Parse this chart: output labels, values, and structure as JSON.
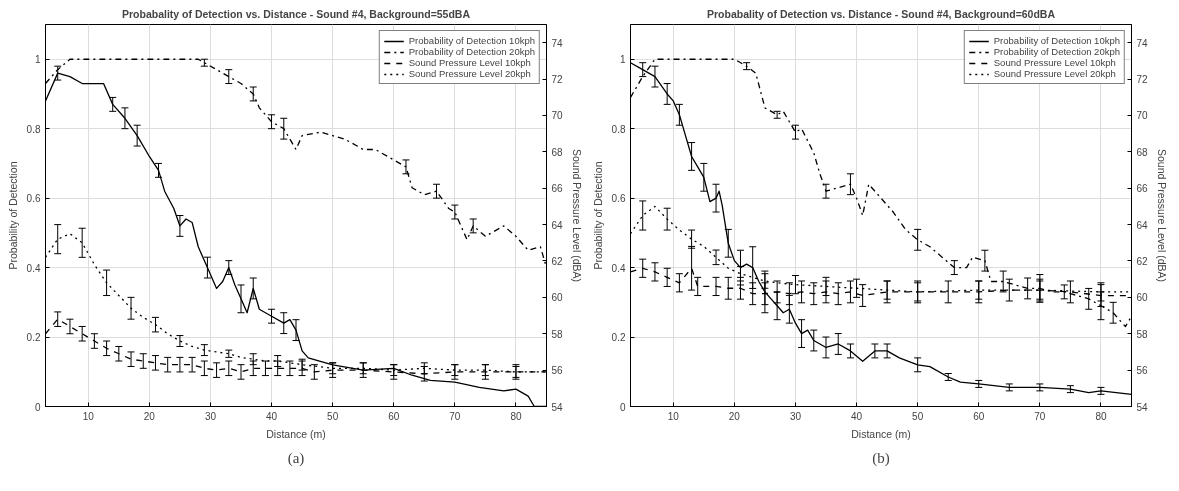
{
  "chart_data": [
    {
      "type": "line",
      "title": "Probabality of Detection vs. Distance - Sound #4, Background=55dBA",
      "xlabel": "Distance (m)",
      "ylabel": "Probability of Detection",
      "y2label": "Sound Pressure Level (dBA)",
      "annotations": [
        "(a)"
      ],
      "xlim": [
        3,
        85
      ],
      "xticks": [
        10,
        20,
        30,
        40,
        50,
        60,
        70,
        80
      ],
      "ylim": [
        0,
        1.1
      ],
      "yticks": [
        0,
        0.2,
        0.4,
        0.6,
        0.8,
        1
      ],
      "y2lim": [
        54,
        75
      ],
      "y2ticks": [
        54,
        56,
        58,
        60,
        62,
        64,
        66,
        68,
        70,
        72,
        74
      ],
      "grid": true,
      "legend": "top right",
      "series": [
        {
          "name": "Probability of Detection 10kph",
          "color": "#000000",
          "line_style": "solid",
          "x": [
            3,
            5,
            7,
            9,
            11,
            12.5,
            14,
            16,
            18,
            20,
            21.5,
            22.5,
            24,
            25,
            26,
            27,
            28,
            29.5,
            31,
            32,
            33,
            34,
            35,
            36,
            37,
            38,
            40,
            42,
            43,
            44,
            45,
            46,
            48,
            50,
            55,
            60,
            63,
            66,
            70,
            74,
            78,
            80,
            82,
            83,
            85
          ],
          "values": [
            0.88,
            0.96,
            0.95,
            0.93,
            0.93,
            0.93,
            0.87,
            0.83,
            0.78,
            0.72,
            0.68,
            0.62,
            0.57,
            0.52,
            0.54,
            0.53,
            0.46,
            0.4,
            0.34,
            0.36,
            0.4,
            0.35,
            0.31,
            0.27,
            0.34,
            0.28,
            0.26,
            0.24,
            0.25,
            0.22,
            0.16,
            0.14,
            0.13,
            0.12,
            0.105,
            0.11,
            0.09,
            0.075,
            0.07,
            0.055,
            0.045,
            0.05,
            0.03,
            0,
            0
          ],
          "errors": [
            null,
            0.02,
            null,
            null,
            null,
            null,
            0.02,
            0.03,
            0.03,
            null,
            0.02,
            null,
            null,
            0.03,
            null,
            null,
            null,
            0.03,
            null,
            null,
            0.02,
            null,
            0.04,
            null,
            0.03,
            null,
            0.02,
            0.03,
            null,
            0.03,
            null,
            null,
            null,
            null,
            null,
            null,
            null,
            null,
            null,
            null,
            null,
            null,
            null,
            null,
            null
          ]
        },
        {
          "name": "Probability of Detection 20kph",
          "color": "#000000",
          "line_style": "dashdot",
          "x": [
            3,
            5,
            7,
            10,
            20,
            28,
            29,
            31,
            33,
            35,
            37,
            38,
            40,
            42,
            44,
            45,
            48,
            50,
            52,
            54,
            55,
            57,
            60,
            62,
            63,
            65,
            67,
            69,
            70,
            71,
            72,
            73,
            75,
            77,
            78,
            80,
            82,
            84,
            85
          ],
          "values": [
            0.93,
            0.97,
            1,
            1,
            1,
            1,
            0.99,
            0.97,
            0.95,
            0.93,
            0.9,
            0.86,
            0.82,
            0.8,
            0.74,
            0.78,
            0.79,
            0.78,
            0.77,
            0.75,
            0.74,
            0.74,
            0.71,
            0.69,
            0.63,
            0.61,
            0.62,
            0.57,
            0.56,
            0.52,
            0.48,
            0.52,
            0.49,
            0.51,
            0.52,
            0.49,
            0.45,
            0.46,
            0.4
          ],
          "errors": [
            null,
            null,
            null,
            null,
            null,
            null,
            0.01,
            null,
            0.02,
            null,
            0.02,
            null,
            0.02,
            0.03,
            null,
            null,
            null,
            null,
            null,
            null,
            null,
            null,
            null,
            0.02,
            null,
            null,
            0.02,
            null,
            0.02,
            null,
            null,
            0.02,
            null,
            null,
            null,
            null,
            null,
            null,
            null
          ]
        },
        {
          "name": "Sound Pressure Level 10kph",
          "color": "#000000",
          "line_style": "dashed",
          "axis": "y2",
          "x": [
            3,
            5,
            7,
            9,
            11,
            13,
            15,
            17,
            19,
            21,
            23,
            25,
            27,
            29,
            31,
            33,
            35,
            37,
            39,
            41,
            43,
            45,
            47,
            50,
            55,
            60,
            65,
            70,
            75,
            80,
            85
          ],
          "values": [
            58.0,
            58.8,
            58.4,
            58.0,
            57.6,
            57.2,
            56.9,
            56.6,
            56.5,
            56.4,
            56.3,
            56.3,
            56.3,
            56.1,
            56.0,
            56.1,
            55.9,
            56.1,
            56.1,
            56.1,
            56.1,
            56.1,
            55.9,
            56.0,
            56.0,
            55.9,
            55.8,
            55.9,
            55.9,
            55.9,
            55.9
          ],
          "errors": [
            null,
            0.4,
            0.4,
            0.4,
            0.4,
            0.4,
            0.4,
            0.4,
            0.4,
            0.4,
            0.4,
            0.4,
            0.4,
            0.4,
            0.4,
            0.4,
            0.4,
            0.4,
            0.4,
            0.4,
            0.4,
            0.4,
            0.4,
            0.4,
            0.4,
            0.4,
            0.4,
            0.4,
            0.4,
            0.4,
            null
          ]
        },
        {
          "name": "Sound Pressure Level 20kph",
          "color": "#000000",
          "line_style": "dotted",
          "axis": "y2",
          "x": [
            3,
            5,
            7,
            9,
            11,
            13,
            15,
            17,
            19,
            21,
            23,
            25,
            27,
            29,
            31,
            33,
            35,
            37,
            39,
            41,
            43,
            45,
            50,
            55,
            60,
            65,
            70,
            75,
            80,
            85
          ],
          "values": [
            62.2,
            63.2,
            63.5,
            63.0,
            61.8,
            60.8,
            60.1,
            59.4,
            58.9,
            58.5,
            58.0,
            57.6,
            57.3,
            57.1,
            57.0,
            56.9,
            56.7,
            56.6,
            56.5,
            56.5,
            56.4,
            56.3,
            56.1,
            56.1,
            56.0,
            56.1,
            56.0,
            56.0,
            55.9,
            55.9
          ],
          "errors": [
            null,
            0.8,
            null,
            0.8,
            null,
            0.7,
            null,
            0.6,
            null,
            0.4,
            null,
            0.3,
            null,
            0.3,
            null,
            0.2,
            null,
            0.3,
            null,
            0.3,
            null,
            0.3,
            0.3,
            0.3,
            0.3,
            0.3,
            0.3,
            0.3,
            0.3,
            null
          ]
        }
      ]
    },
    {
      "type": "line",
      "title": "Probabality of Detection vs. Distance - Sound #4, Background=60dBA",
      "xlabel": "Distance (m)",
      "ylabel": "Probability of Detection",
      "y2label": "Sound Pressure Level (dBA)",
      "annotations": [
        "(b)"
      ],
      "xlim": [
        3,
        85
      ],
      "xticks": [
        10,
        20,
        30,
        40,
        50,
        60,
        70,
        80
      ],
      "ylim": [
        0,
        1.1
      ],
      "yticks": [
        0,
        0.2,
        0.4,
        0.6,
        0.8,
        1
      ],
      "y2lim": [
        54,
        75
      ],
      "y2ticks": [
        54,
        56,
        58,
        60,
        62,
        64,
        66,
        68,
        70,
        72,
        74
      ],
      "grid": true,
      "legend": "top right",
      "series": [
        {
          "name": "Probability of Detection 10kph",
          "color": "#000000",
          "line_style": "solid",
          "x": [
            3,
            5,
            7,
            9,
            10,
            11,
            12,
            13,
            14,
            15,
            16,
            17,
            17.5,
            18,
            19,
            20,
            21,
            22,
            23,
            24,
            25,
            26,
            27,
            28,
            29,
            30,
            31,
            32,
            33,
            35,
            37,
            39,
            41,
            43,
            45,
            47,
            50,
            52,
            55,
            57,
            60,
            65,
            70,
            75,
            78,
            80,
            85
          ],
          "values": [
            0.99,
            0.97,
            0.95,
            0.9,
            0.88,
            0.84,
            0.78,
            0.72,
            0.69,
            0.66,
            0.59,
            0.6,
            0.62,
            0.58,
            0.47,
            0.42,
            0.4,
            0.41,
            0.4,
            0.36,
            0.33,
            0.31,
            0.29,
            0.27,
            0.28,
            0.24,
            0.21,
            0.22,
            0.19,
            0.17,
            0.18,
            0.16,
            0.13,
            0.16,
            0.16,
            0.14,
            0.12,
            0.115,
            0.085,
            0.07,
            0.065,
            0.055,
            0.055,
            0.05,
            0.04,
            0.045,
            0.035
          ],
          "errors": [
            null,
            0.02,
            0.03,
            0.03,
            null,
            0.03,
            null,
            0.04,
            null,
            0.04,
            null,
            0.04,
            null,
            null,
            0.04,
            null,
            0.05,
            null,
            0.06,
            null,
            0.06,
            null,
            0.04,
            null,
            0.04,
            null,
            0.04,
            null,
            0.03,
            0.03,
            0.03,
            0.02,
            null,
            0.02,
            0.02,
            null,
            0.02,
            null,
            0.01,
            null,
            0.01,
            0.01,
            0.01,
            0.01,
            null,
            0.01,
            null
          ]
        },
        {
          "name": "Probability of Detection 20kph",
          "color": "#000000",
          "line_style": "dashdot",
          "x": [
            3,
            5,
            7,
            10,
            20,
            22,
            23.5,
            25,
            27,
            28,
            30,
            31,
            33,
            34,
            35,
            37,
            39,
            40,
            41,
            42,
            44,
            46,
            48,
            50,
            52,
            54,
            56,
            58,
            59,
            61,
            62,
            64,
            66,
            68,
            70,
            72,
            74,
            76,
            78,
            80,
            82,
            84,
            85
          ],
          "values": [
            0.89,
            0.95,
            1,
            1,
            1,
            0.98,
            0.96,
            0.86,
            0.84,
            0.85,
            0.79,
            0.8,
            0.73,
            0.67,
            0.62,
            0.63,
            0.64,
            0.6,
            0.55,
            0.64,
            0.6,
            0.56,
            0.51,
            0.48,
            0.46,
            0.43,
            0.4,
            0.4,
            0.43,
            0.42,
            0.36,
            0.36,
            0.35,
            0.34,
            0.34,
            0.33,
            0.33,
            0.32,
            0.31,
            0.29,
            0.27,
            0.23,
            0.26
          ],
          "errors": [
            null,
            null,
            null,
            null,
            null,
            0.01,
            null,
            null,
            0.01,
            null,
            0.02,
            null,
            null,
            null,
            0.02,
            null,
            0.03,
            null,
            null,
            null,
            null,
            null,
            null,
            0.03,
            null,
            null,
            0.02,
            null,
            null,
            0.03,
            null,
            0.03,
            null,
            0.03,
            0.04,
            null,
            0.02,
            null,
            0.03,
            0.04,
            0.03,
            null,
            null
          ]
        },
        {
          "name": "Sound Pressure Level 10kph",
          "color": "#000000",
          "line_style": "dashed",
          "axis": "y2",
          "x": [
            3,
            5,
            7,
            9,
            11,
            13,
            14,
            17,
            19,
            21,
            23,
            25,
            27,
            29,
            31,
            33,
            35,
            37,
            39,
            41,
            45,
            50,
            55,
            60,
            65,
            70,
            75,
            80,
            85
          ],
          "values": [
            61.4,
            61.6,
            61.4,
            61.1,
            60.8,
            61.6,
            60.6,
            60.6,
            60.5,
            60.5,
            60.2,
            60.2,
            60.3,
            60.2,
            60.3,
            60.2,
            60.3,
            60.2,
            60.3,
            60.1,
            60.3,
            60.3,
            60.3,
            60.3,
            60.4,
            60.4,
            60.3,
            60.1,
            60.1
          ],
          "errors": [
            null,
            0.5,
            0.5,
            0.5,
            0.5,
            1.2,
            0.5,
            0.5,
            0.6,
            0.6,
            0.6,
            0.6,
            0.6,
            0.6,
            0.6,
            0.6,
            0.6,
            0.6,
            0.6,
            0.6,
            0.6,
            0.6,
            0.6,
            0.6,
            0.6,
            0.6,
            0.6,
            0.6,
            null
          ]
        },
        {
          "name": "Sound Pressure Level 20kph",
          "color": "#000000",
          "line_style": "dotted",
          "axis": "y2",
          "x": [
            3,
            5,
            7,
            9,
            11,
            13,
            15,
            17,
            19,
            21,
            23,
            25,
            27,
            30,
            35,
            40,
            45,
            50,
            60,
            70,
            80,
            85
          ],
          "values": [
            63.5,
            64.5,
            65.0,
            64.3,
            63.7,
            63.2,
            62.8,
            62.2,
            61.6,
            61.3,
            61.1,
            60.9,
            60.8,
            60.7,
            60.6,
            60.5,
            60.4,
            60.3,
            60.4,
            60.4,
            60.3,
            60.3
          ],
          "errors": [
            null,
            0.8,
            null,
            0.6,
            null,
            0.5,
            null,
            0.4,
            null,
            0.4,
            null,
            0.4,
            null,
            0.5,
            0.5,
            0.5,
            0.5,
            0.5,
            0.5,
            0.5,
            0.5,
            null
          ]
        }
      ]
    }
  ]
}
